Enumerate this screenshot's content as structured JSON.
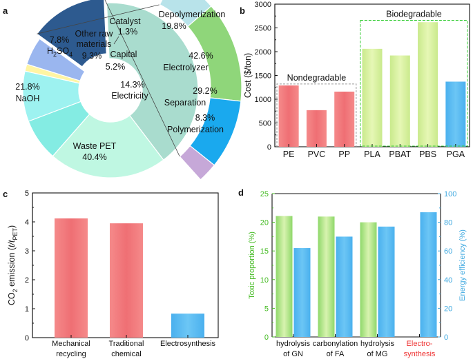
{
  "chart_data": [
    {
      "id": "a",
      "panel_label": "a",
      "type": "pie",
      "subtype": "donut-with-exploded-sector",
      "slices": [
        {
          "name": "Waste PET",
          "value": 40.4,
          "label": "Waste PET",
          "pct": "40.4%",
          "color": "#a9dcce"
        },
        {
          "name": "NaOH",
          "value": 21.8,
          "label": "NaOH",
          "pct": "21.8%",
          "color": "#bff7e2"
        },
        {
          "name": "H2SO4",
          "value": 7.8,
          "label": "H",
          "sub": "2",
          "label_tail": "SO",
          "sub2": "4",
          "pct": "7.8%",
          "color": "#84ece3"
        },
        {
          "name": "Other raw materials",
          "value": 9.3,
          "label_lines": [
            "Other raw",
            "materials"
          ],
          "pct": "9.3%",
          "color": "#9df2f0"
        },
        {
          "name": "Catalyst",
          "value": 1.3,
          "label": "Catalyst",
          "pct": "1.3%",
          "color": "#fff5a3"
        },
        {
          "name": "Capital",
          "value": 5.2,
          "label": "Capital",
          "pct": "5.2%",
          "color": "#9ab6ef"
        },
        {
          "name": "Electricity",
          "value": 14.3,
          "label": "Electricity",
          "pct": "14.3%",
          "color": "#2d5a8f"
        }
      ],
      "electricity_breakdown": [
        {
          "name": "Depolymerization",
          "value": 19.8,
          "label": "Depolymerization",
          "pct": "19.8%",
          "color": "#b8e3ea"
        },
        {
          "name": "Electrolyzer",
          "value": 42.6,
          "label": "Electrolyzer",
          "pct": "42.6%",
          "color": "#8fd67a"
        },
        {
          "name": "Separation",
          "value": 29.2,
          "label": "Separation",
          "pct": "29.2%",
          "color": "#1aa9ee"
        },
        {
          "name": "Polymerization",
          "value": 8.3,
          "label": "Polymerization",
          "pct": "8.3%",
          "color": "#c6a8d8"
        }
      ]
    },
    {
      "id": "b",
      "panel_label": "b",
      "type": "bar",
      "categories": [
        "PE",
        "PVC",
        "PP",
        "PLA",
        "PBAT",
        "PBS",
        "PGA"
      ],
      "values": [
        1290,
        770,
        1160,
        2060,
        1920,
        2620,
        1370
      ],
      "colors": [
        "#f0797c",
        "#f0797c",
        "#f0797c",
        "#d5ef9a",
        "#d5ef9a",
        "#d5ef9a",
        "#5bbbf0"
      ],
      "ylabel": "Cost ($/ton)",
      "ylim": [
        0,
        3000
      ],
      "yticks": [
        "0",
        "500",
        "1000",
        "1500",
        "2000",
        "2500",
        "3000"
      ],
      "groups": [
        {
          "label": "Nondegradable",
          "from": 0,
          "to": 2,
          "level": 1320,
          "color": "#999999"
        },
        {
          "label": "Biodegradable",
          "from": 3,
          "to": 6,
          "level": 2660,
          "color": "#33cc33"
        }
      ]
    },
    {
      "id": "c",
      "panel_label": "c",
      "type": "bar",
      "categories": [
        [
          "Mechanical",
          "recycling"
        ],
        [
          "Traditional",
          "chemical"
        ],
        [
          "Electrosynthesis"
        ]
      ],
      "values": [
        4.12,
        3.95,
        0.83
      ],
      "colors": [
        "#f0797c",
        "#f0797c",
        "#5bbbf0"
      ],
      "ylabel": "CO2 emission (t/tPET)",
      "ylabel_parts": {
        "a": "CO",
        "a_sub": "2",
        "b": " emission (",
        "c": "t/t",
        "c_sub": "PET",
        "d": ")"
      },
      "ylim": [
        0,
        5
      ],
      "yticks": [
        "0",
        "1",
        "2",
        "3",
        "4",
        "5"
      ]
    },
    {
      "id": "d",
      "panel_label": "d",
      "type": "bar",
      "categories": [
        [
          "hydrolysis",
          "of GN"
        ],
        [
          "carbonylation",
          "of FA"
        ],
        [
          "hydrolysis",
          "of MG"
        ],
        [
          "Electro-",
          "synthesis"
        ]
      ],
      "category_colors": [
        "#111111",
        "#111111",
        "#111111",
        "#ee3333"
      ],
      "series": [
        {
          "name": "Toxic proportion",
          "values": [
            21.1,
            21.0,
            20.0,
            null
          ],
          "color": "#aee58a",
          "axis": "left"
        },
        {
          "name": "Energy efficiency",
          "values": [
            62,
            70,
            77,
            87
          ],
          "color": "#5bbbf0",
          "axis": "right"
        }
      ],
      "ylabel_left": "Toxic proportion (%)",
      "ylabel_right": "Energy efficiency (%)",
      "ylim_left": [
        0,
        25
      ],
      "ylim_right": [
        0,
        100
      ],
      "yticks_left": [
        "0",
        "5",
        "10",
        "15",
        "20",
        "25"
      ],
      "yticks_right": [
        "0",
        "20",
        "40",
        "60",
        "80",
        "100"
      ],
      "left_color": "#44bb22",
      "right_color": "#3fa9e0"
    }
  ]
}
